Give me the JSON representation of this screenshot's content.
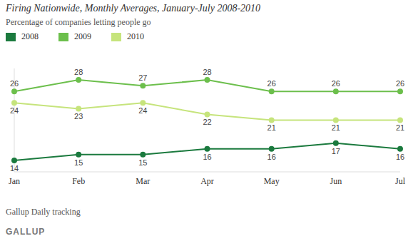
{
  "chart_data": {
    "type": "line",
    "title": "Firing Nationwide, Monthly Averages, January-July 2008-2010",
    "subtitle": "Percentage of companies letting people go",
    "source": "Gallup Daily tracking",
    "logo": "GALLUP",
    "categories": [
      "Jan",
      "Feb",
      "Mar",
      "Apr",
      "May",
      "Jun",
      "Jul"
    ],
    "series": [
      {
        "name": "2008",
        "color": "#1b7a3e",
        "values": [
          14,
          15,
          15,
          16,
          16,
          17,
          16
        ]
      },
      {
        "name": "2009",
        "color": "#6cbf4c",
        "values": [
          26,
          28,
          27,
          28,
          26,
          26,
          26
        ]
      },
      {
        "name": "2010",
        "color": "#c6e47c",
        "values": [
          24,
          23,
          24,
          22,
          21,
          21,
          21
        ]
      }
    ],
    "ylim": [
      12,
      30
    ],
    "grid": false,
    "data_labels": true,
    "tick_labels": "x",
    "marker": "circle",
    "line_style": "solid",
    "legend": "top left"
  }
}
